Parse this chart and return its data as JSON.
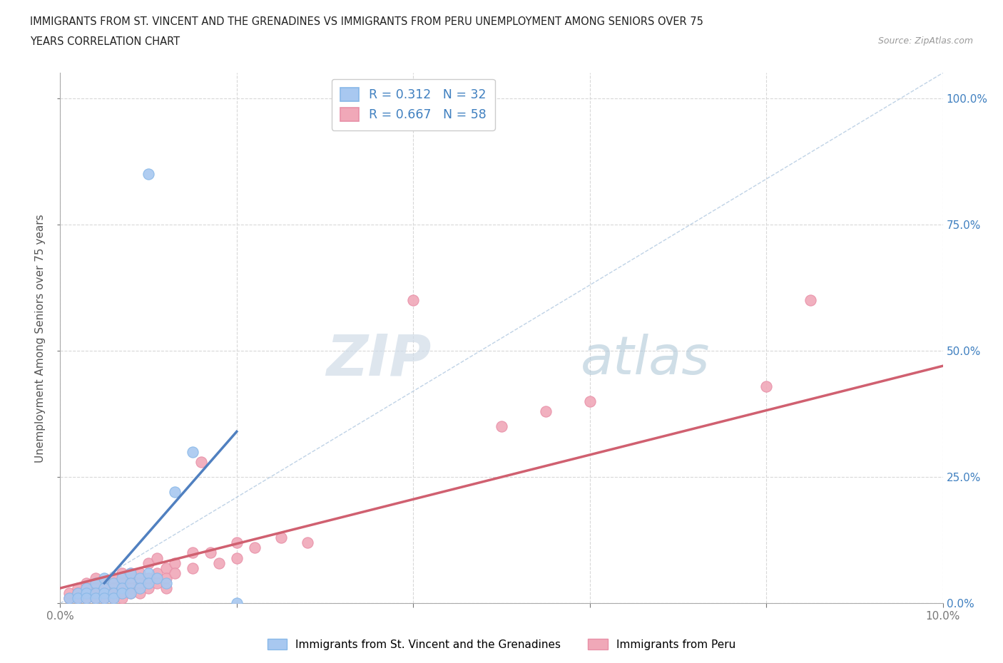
{
  "title_line1": "IMMIGRANTS FROM ST. VINCENT AND THE GRENADINES VS IMMIGRANTS FROM PERU UNEMPLOYMENT AMONG SENIORS OVER 75",
  "title_line2": "YEARS CORRELATION CHART",
  "source": "Source: ZipAtlas.com",
  "ylabel": "Unemployment Among Seniors over 75 years",
  "xlim": [
    0.0,
    0.1
  ],
  "ylim": [
    0.0,
    1.05
  ],
  "ytick_labels": [
    "0.0%",
    "25.0%",
    "50.0%",
    "75.0%",
    "100.0%"
  ],
  "yticks": [
    0.0,
    0.25,
    0.5,
    0.75,
    1.0
  ],
  "legend1_label": "Immigrants from St. Vincent and the Grenadines",
  "legend2_label": "Immigrants from Peru",
  "R1": 0.312,
  "N1": 32,
  "R2": 0.667,
  "N2": 58,
  "color_blue": "#a8c8f0",
  "color_pink": "#f0a8b8",
  "color_blue_line": "#5080c0",
  "color_pink_line": "#d06070",
  "color_diag": "#b0c8e0",
  "color_text_blue": "#4080c0",
  "watermark_zip_color": "#d0dce8",
  "watermark_atlas_color": "#b0c8d8",
  "scatter_blue": [
    [
      0.001,
      0.01
    ],
    [
      0.002,
      0.02
    ],
    [
      0.002,
      0.01
    ],
    [
      0.003,
      0.03
    ],
    [
      0.003,
      0.02
    ],
    [
      0.003,
      0.01
    ],
    [
      0.004,
      0.04
    ],
    [
      0.004,
      0.02
    ],
    [
      0.004,
      0.01
    ],
    [
      0.005,
      0.05
    ],
    [
      0.005,
      0.03
    ],
    [
      0.005,
      0.02
    ],
    [
      0.005,
      0.01
    ],
    [
      0.006,
      0.04
    ],
    [
      0.006,
      0.02
    ],
    [
      0.006,
      0.01
    ],
    [
      0.007,
      0.05
    ],
    [
      0.007,
      0.03
    ],
    [
      0.007,
      0.02
    ],
    [
      0.008,
      0.06
    ],
    [
      0.008,
      0.04
    ],
    [
      0.008,
      0.02
    ],
    [
      0.009,
      0.05
    ],
    [
      0.009,
      0.03
    ],
    [
      0.01,
      0.06
    ],
    [
      0.01,
      0.04
    ],
    [
      0.011,
      0.05
    ],
    [
      0.012,
      0.04
    ],
    [
      0.013,
      0.22
    ],
    [
      0.015,
      0.3
    ],
    [
      0.02,
      0.0
    ],
    [
      0.01,
      0.85
    ]
  ],
  "scatter_pink": [
    [
      0.001,
      0.01
    ],
    [
      0.001,
      0.02
    ],
    [
      0.002,
      0.03
    ],
    [
      0.002,
      0.01
    ],
    [
      0.002,
      0.02
    ],
    [
      0.003,
      0.04
    ],
    [
      0.003,
      0.02
    ],
    [
      0.003,
      0.01
    ],
    [
      0.003,
      0.03
    ],
    [
      0.004,
      0.05
    ],
    [
      0.004,
      0.03
    ],
    [
      0.004,
      0.02
    ],
    [
      0.004,
      0.01
    ],
    [
      0.005,
      0.04
    ],
    [
      0.005,
      0.02
    ],
    [
      0.005,
      0.01
    ],
    [
      0.006,
      0.05
    ],
    [
      0.006,
      0.03
    ],
    [
      0.006,
      0.02
    ],
    [
      0.006,
      0.01
    ],
    [
      0.007,
      0.06
    ],
    [
      0.007,
      0.04
    ],
    [
      0.007,
      0.02
    ],
    [
      0.007,
      0.01
    ],
    [
      0.008,
      0.05
    ],
    [
      0.008,
      0.03
    ],
    [
      0.008,
      0.06
    ],
    [
      0.008,
      0.02
    ],
    [
      0.009,
      0.04
    ],
    [
      0.009,
      0.06
    ],
    [
      0.009,
      0.02
    ],
    [
      0.01,
      0.05
    ],
    [
      0.01,
      0.08
    ],
    [
      0.01,
      0.03
    ],
    [
      0.011,
      0.06
    ],
    [
      0.011,
      0.04
    ],
    [
      0.011,
      0.09
    ],
    [
      0.012,
      0.07
    ],
    [
      0.012,
      0.05
    ],
    [
      0.012,
      0.03
    ],
    [
      0.013,
      0.08
    ],
    [
      0.013,
      0.06
    ],
    [
      0.015,
      0.1
    ],
    [
      0.015,
      0.07
    ],
    [
      0.016,
      0.28
    ],
    [
      0.017,
      0.1
    ],
    [
      0.018,
      0.08
    ],
    [
      0.02,
      0.12
    ],
    [
      0.02,
      0.09
    ],
    [
      0.022,
      0.11
    ],
    [
      0.025,
      0.13
    ],
    [
      0.028,
      0.12
    ],
    [
      0.04,
      0.6
    ],
    [
      0.05,
      0.35
    ],
    [
      0.055,
      0.38
    ],
    [
      0.06,
      0.4
    ],
    [
      0.08,
      0.43
    ],
    [
      0.085,
      0.6
    ]
  ],
  "grid_color": "#d8d8d8",
  "background_color": "#ffffff"
}
